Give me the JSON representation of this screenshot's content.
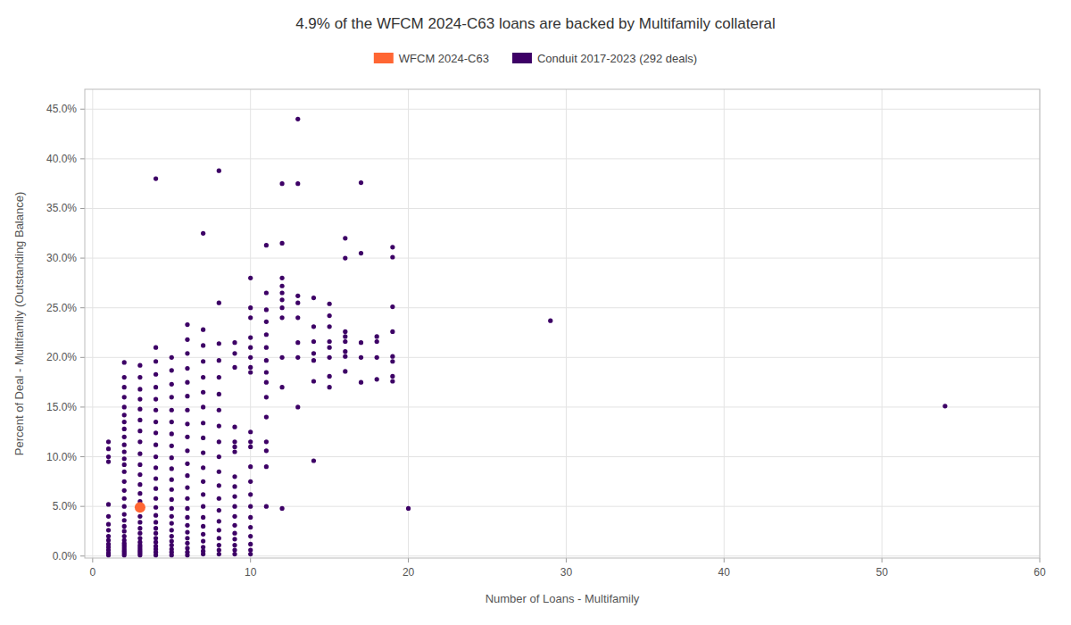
{
  "chart_data": {
    "type": "scatter",
    "title": "4.9% of the WFCM 2024-C63 loans are backed by Multifamily collateral",
    "xlabel": "Number of Loans - Multifamily",
    "ylabel": "Percent of Deal - Multifamily (Outstanding Balance)",
    "xlim": [
      -0.5,
      60
    ],
    "ylim": [
      -0.002,
      0.47
    ],
    "xticks": [
      0,
      10,
      20,
      30,
      40,
      50,
      60
    ],
    "yticks": [
      {
        "value": 0.0,
        "label": "0.0%"
      },
      {
        "value": 0.05,
        "label": "5.0%"
      },
      {
        "value": 0.1,
        "label": "10.0%"
      },
      {
        "value": 0.15,
        "label": "15.0%"
      },
      {
        "value": 0.2,
        "label": "20.0%"
      },
      {
        "value": 0.25,
        "label": "25.0%"
      },
      {
        "value": 0.3,
        "label": "30.0%"
      },
      {
        "value": 0.35,
        "label": "35.0%"
      },
      {
        "value": 0.4,
        "label": "40.0%"
      },
      {
        "value": 0.45,
        "label": "45.0%"
      }
    ],
    "grid": true,
    "legend": "top",
    "series": [
      {
        "name": "WFCM 2024-C63",
        "color": "#FF6633",
        "marker": "circle",
        "x": [
          3
        ],
        "values": [
          0.049
        ]
      },
      {
        "name": "Conduit 2017-2023 (292 deals)",
        "color": "#3D0066",
        "marker": "circle",
        "x": [
          1,
          1,
          1,
          1,
          1,
          1,
          1,
          1,
          1,
          1,
          1,
          1,
          1,
          1,
          1,
          2,
          2,
          2,
          2,
          2,
          2,
          2,
          2,
          2,
          2,
          2,
          2,
          2,
          2,
          2,
          2,
          2,
          2,
          2,
          2,
          2,
          2,
          2,
          2,
          2,
          2,
          2,
          2,
          2,
          2,
          2,
          3,
          3,
          3,
          3,
          3,
          3,
          3,
          3,
          3,
          3,
          3,
          3,
          3,
          3,
          3,
          3,
          3,
          3,
          3,
          3,
          3,
          3,
          3,
          3,
          3,
          3,
          3,
          4,
          4,
          4,
          4,
          4,
          4,
          4,
          4,
          4,
          4,
          4,
          4,
          4,
          4,
          4,
          4,
          4,
          4,
          4,
          4,
          4,
          4,
          4,
          4,
          4,
          4,
          5,
          5,
          5,
          5,
          5,
          5,
          5,
          5,
          5,
          5,
          5,
          5,
          5,
          5,
          5,
          5,
          5,
          5,
          5,
          5,
          5,
          5,
          5,
          6,
          6,
          6,
          6,
          6,
          6,
          6,
          6,
          6,
          6,
          6,
          6,
          6,
          6,
          6,
          6,
          6,
          6,
          6,
          6,
          6,
          6,
          6,
          7,
          7,
          7,
          7,
          7,
          7,
          7,
          7,
          7,
          7,
          7,
          7,
          7,
          7,
          7,
          7,
          7,
          7,
          7,
          7,
          7,
          8,
          8,
          8,
          8,
          8,
          8,
          8,
          8,
          8,
          8,
          8,
          8,
          8,
          8,
          8,
          8,
          8,
          8,
          8,
          8,
          9,
          9,
          9,
          9,
          9,
          9,
          9,
          9,
          9,
          9,
          9,
          9,
          9,
          9,
          9,
          9,
          9,
          9,
          10,
          10,
          10,
          10,
          10,
          10,
          10,
          10,
          10,
          10,
          10,
          10,
          10,
          10,
          10,
          10,
          10,
          10,
          10,
          10,
          10,
          11,
          11,
          11,
          11,
          11,
          11,
          11,
          11,
          11,
          11,
          11,
          11,
          11,
          11,
          11,
          12,
          12,
          12,
          12,
          12,
          12,
          12,
          12,
          12,
          12,
          12,
          13,
          13,
          13,
          13,
          13,
          13,
          13,
          13,
          14,
          14,
          14,
          14,
          14,
          14,
          14,
          15,
          15,
          15,
          15,
          15,
          15,
          15,
          15,
          16,
          16,
          16,
          16,
          16,
          16,
          16,
          16,
          17,
          17,
          17,
          17,
          17,
          18,
          18,
          18,
          18,
          19,
          19,
          19,
          19,
          19,
          19,
          19,
          19,
          20,
          29,
          54
        ],
        "values": [
          0.001,
          0.003,
          0.006,
          0.009,
          0.012,
          0.016,
          0.02,
          0.026,
          0.032,
          0.04,
          0.052,
          0.095,
          0.1,
          0.108,
          0.115,
          0.001,
          0.003,
          0.005,
          0.007,
          0.009,
          0.011,
          0.013,
          0.016,
          0.02,
          0.025,
          0.03,
          0.036,
          0.042,
          0.05,
          0.058,
          0.066,
          0.075,
          0.085,
          0.092,
          0.098,
          0.105,
          0.112,
          0.12,
          0.128,
          0.135,
          0.142,
          0.15,
          0.16,
          0.17,
          0.18,
          0.195,
          0.001,
          0.003,
          0.005,
          0.007,
          0.009,
          0.011,
          0.014,
          0.018,
          0.023,
          0.028,
          0.034,
          0.04,
          0.048,
          0.055,
          0.063,
          0.072,
          0.082,
          0.092,
          0.103,
          0.115,
          0.126,
          0.137,
          0.148,
          0.158,
          0.168,
          0.18,
          0.192,
          0.001,
          0.004,
          0.007,
          0.01,
          0.014,
          0.018,
          0.023,
          0.028,
          0.034,
          0.041,
          0.049,
          0.058,
          0.068,
          0.078,
          0.089,
          0.1,
          0.112,
          0.124,
          0.135,
          0.147,
          0.158,
          0.17,
          0.183,
          0.196,
          0.21,
          0.38,
          0.001,
          0.004,
          0.007,
          0.011,
          0.015,
          0.02,
          0.026,
          0.033,
          0.04,
          0.048,
          0.057,
          0.067,
          0.077,
          0.088,
          0.099,
          0.111,
          0.123,
          0.135,
          0.147,
          0.16,
          0.173,
          0.187,
          0.2,
          0.001,
          0.004,
          0.008,
          0.013,
          0.018,
          0.024,
          0.031,
          0.039,
          0.048,
          0.058,
          0.069,
          0.081,
          0.093,
          0.106,
          0.12,
          0.133,
          0.147,
          0.161,
          0.175,
          0.189,
          0.204,
          0.218,
          0.233,
          0.002,
          0.005,
          0.009,
          0.015,
          0.022,
          0.03,
          0.039,
          0.05,
          0.062,
          0.075,
          0.089,
          0.104,
          0.119,
          0.134,
          0.15,
          0.165,
          0.18,
          0.196,
          0.212,
          0.228,
          0.325,
          0.002,
          0.006,
          0.011,
          0.018,
          0.026,
          0.035,
          0.046,
          0.058,
          0.071,
          0.085,
          0.1,
          0.115,
          0.131,
          0.147,
          0.163,
          0.18,
          0.197,
          0.214,
          0.255,
          0.388,
          0.002,
          0.006,
          0.011,
          0.017,
          0.023,
          0.031,
          0.04,
          0.05,
          0.06,
          0.07,
          0.08,
          0.105,
          0.11,
          0.115,
          0.13,
          0.19,
          0.204,
          0.215,
          0.002,
          0.006,
          0.012,
          0.02,
          0.029,
          0.039,
          0.05,
          0.062,
          0.075,
          0.09,
          0.11,
          0.115,
          0.125,
          0.185,
          0.19,
          0.2,
          0.21,
          0.22,
          0.24,
          0.25,
          0.28,
          0.05,
          0.09,
          0.106,
          0.115,
          0.14,
          0.16,
          0.175,
          0.185,
          0.197,
          0.21,
          0.223,
          0.236,
          0.248,
          0.265,
          0.313,
          0.048,
          0.17,
          0.2,
          0.24,
          0.25,
          0.258,
          0.265,
          0.272,
          0.28,
          0.315,
          0.375,
          0.15,
          0.2,
          0.215,
          0.24,
          0.255,
          0.262,
          0.375,
          0.44,
          0.096,
          0.176,
          0.197,
          0.204,
          0.216,
          0.231,
          0.26,
          0.17,
          0.181,
          0.2,
          0.21,
          0.216,
          0.231,
          0.242,
          0.254,
          0.186,
          0.201,
          0.206,
          0.216,
          0.221,
          0.226,
          0.3,
          0.32,
          0.175,
          0.2,
          0.215,
          0.305,
          0.376,
          0.178,
          0.2,
          0.216,
          0.221,
          0.176,
          0.181,
          0.196,
          0.201,
          0.226,
          0.251,
          0.301,
          0.311,
          0.048,
          0.237,
          0.151
        ]
      }
    ]
  }
}
